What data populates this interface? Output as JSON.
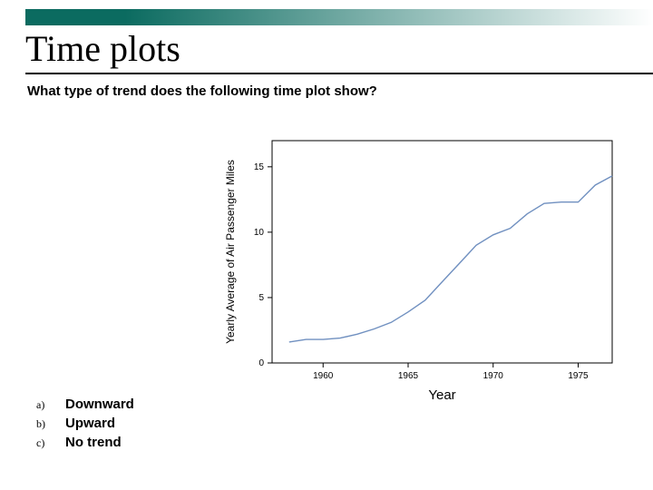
{
  "header": {
    "solid_color": "#0b6b60",
    "gradient_start": "#0b6b60",
    "gradient_end": "#ffffff"
  },
  "title": "Time plots",
  "question": "What type of trend does the following time plot show?",
  "answers": [
    {
      "marker": "a)",
      "label": "Downward"
    },
    {
      "marker": "b)",
      "label": "Upward"
    },
    {
      "marker": "c)",
      "label": "No trend"
    }
  ],
  "chart": {
    "type": "line",
    "xlabel": "Year",
    "ylabel": "Yearly Average of Air Passenger Miles",
    "xlabel_fontsize": 15,
    "ylabel_fontsize": 12,
    "tick_fontsize": 10,
    "xlim": [
      1957,
      1977
    ],
    "ylim": [
      0,
      17
    ],
    "xticks": [
      1960,
      1965,
      1970,
      1975
    ],
    "yticks": [
      0,
      5,
      10,
      15
    ],
    "line_color": "#7090c0",
    "line_width": 1.4,
    "axis_color": "#000000",
    "tick_color": "#000000",
    "background_color": "#ffffff",
    "data": [
      {
        "x": 1958,
        "y": 1.6
      },
      {
        "x": 1959,
        "y": 1.8
      },
      {
        "x": 1960,
        "y": 1.8
      },
      {
        "x": 1961,
        "y": 1.9
      },
      {
        "x": 1962,
        "y": 2.2
      },
      {
        "x": 1963,
        "y": 2.6
      },
      {
        "x": 1964,
        "y": 3.1
      },
      {
        "x": 1965,
        "y": 3.9
      },
      {
        "x": 1966,
        "y": 4.8
      },
      {
        "x": 1967,
        "y": 6.2
      },
      {
        "x": 1968,
        "y": 7.6
      },
      {
        "x": 1969,
        "y": 9.0
      },
      {
        "x": 1970,
        "y": 9.8
      },
      {
        "x": 1971,
        "y": 10.3
      },
      {
        "x": 1972,
        "y": 11.4
      },
      {
        "x": 1973,
        "y": 12.2
      },
      {
        "x": 1974,
        "y": 12.3
      },
      {
        "x": 1975,
        "y": 12.3
      },
      {
        "x": 1976,
        "y": 13.6
      },
      {
        "x": 1977,
        "y": 14.3
      }
    ]
  }
}
